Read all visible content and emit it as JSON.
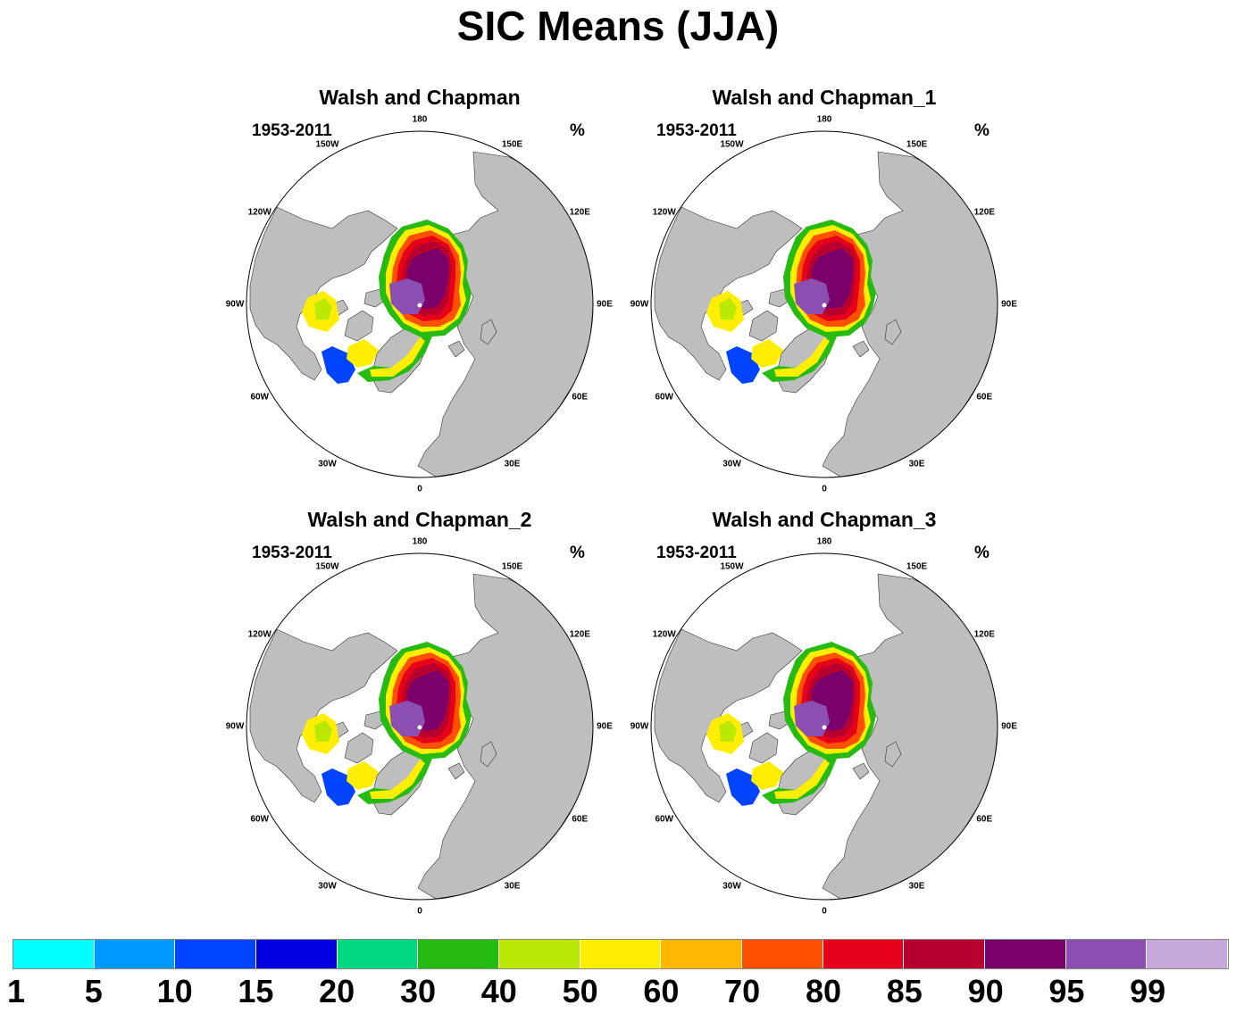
{
  "title": "SIC Means (JJA)",
  "panels": [
    {
      "title": "Walsh and Chapman",
      "period": "1953-2011",
      "units": "%"
    },
    {
      "title": "Walsh and Chapman_1",
      "period": "1953-2011",
      "units": "%"
    },
    {
      "title": "Walsh and Chapman_2",
      "period": "1953-2011",
      "units": "%"
    },
    {
      "title": "Walsh and Chapman_3",
      "period": "1953-2011",
      "units": "%"
    }
  ],
  "lon_labels": [
    "180",
    "150E",
    "120E",
    "90E",
    "60E",
    "30E",
    "0",
    "30W",
    "60W",
    "90W",
    "120W",
    "150W"
  ],
  "colorbar": {
    "labels": [
      "1",
      "5",
      "10",
      "15",
      "20",
      "30",
      "40",
      "50",
      "60",
      "70",
      "80",
      "85",
      "90",
      "95",
      "99"
    ],
    "colors": [
      "#00ffff",
      "#0099ff",
      "#0044ff",
      "#0000e0",
      "#00d980",
      "#26bb10",
      "#bce805",
      "#ffee00",
      "#ffb800",
      "#ff5000",
      "#e6001a",
      "#b8002e",
      "#7a006a",
      "#8a4fb0",
      "#c6a8d8"
    ]
  },
  "colors": {
    "land": "#bebebe",
    "ocean": "#ffffff"
  }
}
